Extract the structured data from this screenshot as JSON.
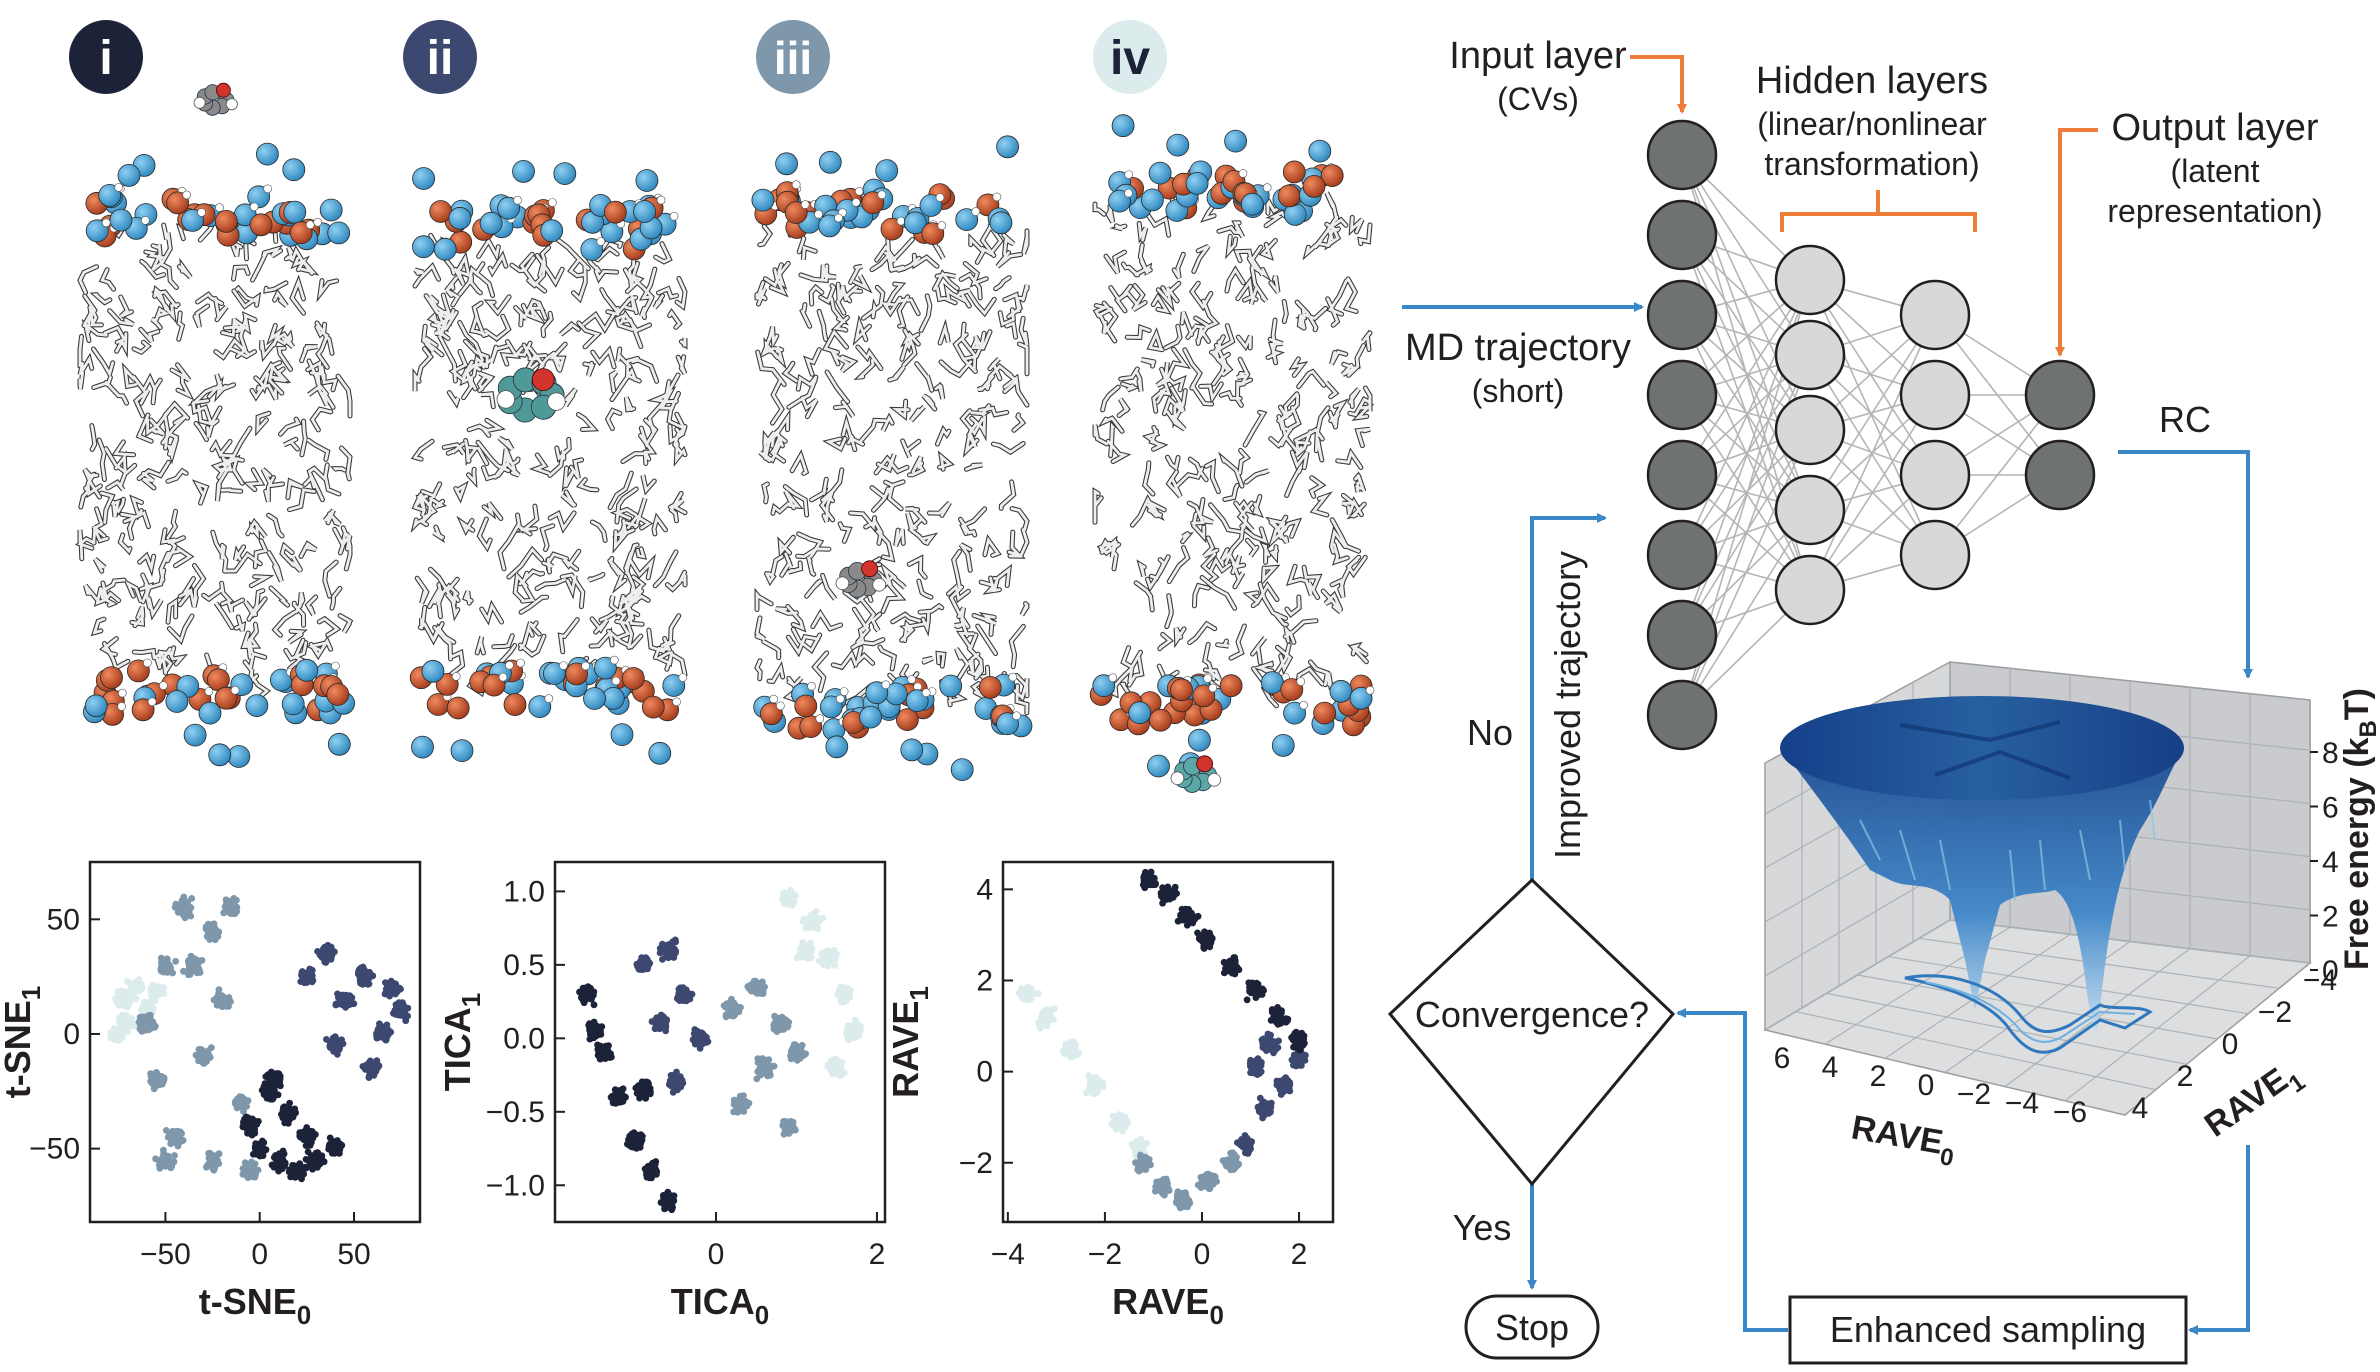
{
  "panels": {
    "labels": [
      "i",
      "ii",
      "iii",
      "iv"
    ],
    "label_colors": [
      "#1c2238",
      "#3d4870",
      "#7f97aa",
      "#dcecec"
    ],
    "label_text_colors": [
      "#ffffff",
      "#ffffff",
      "#ffffff",
      "#1c2238"
    ]
  },
  "network": {
    "input_label": "Input layer",
    "input_sub": "(CVs)",
    "hidden_label": "Hidden layers",
    "hidden_sub1": "(linear/nonlinear",
    "hidden_sub2": "transformation)",
    "output_label": "Output layer",
    "output_sub1": "(latent",
    "output_sub2": "representation)",
    "md_label": "MD trajectory",
    "md_sub": "(short)",
    "rc_label": "RC"
  },
  "flow": {
    "convergence": "Convergence?",
    "no": "No",
    "yes": "Yes",
    "stop": "Stop",
    "improved": "Improved trajectory",
    "enhanced": "Enhanced sampling"
  },
  "surface": {
    "zlabel": "Free energy (k",
    "zlabel_sub": "B",
    "zlabel_end": "T)",
    "zticks": [
      "8",
      "6",
      "4",
      "2",
      "0"
    ],
    "xlabel": "RAVE",
    "xlabel_sub": "0",
    "xticks": [
      "6",
      "4",
      "2",
      "0",
      "−2",
      "−4",
      "−6"
    ],
    "ylabel": "RAVE",
    "ylabel_sub": "1",
    "yticks": [
      "−4",
      "−2",
      "0",
      "2",
      "4"
    ]
  },
  "colors": {
    "arrow_blue": "#3a87c8",
    "arrow_orange": "#ee7d3a",
    "cluster_1": "#1c2238",
    "cluster_2": "#3d4870",
    "cluster_3": "#7f97aa",
    "cluster_4": "#dcecec"
  },
  "chart_data": [
    {
      "type": "scatter",
      "xlabel": "t-SNE",
      "xlabel_sub": "0",
      "ylabel": "t-SNE",
      "ylabel_sub": "1",
      "xlim": [
        -90,
        85
      ],
      "ylim": [
        -82,
        75
      ],
      "xticks": [
        -50,
        0,
        50
      ],
      "xtick_labels": [
        "−50",
        "0",
        "50"
      ],
      "yticks": [
        50,
        0,
        -50
      ],
      "ytick_labels": [
        "50",
        "0",
        "−50"
      ],
      "series": [
        {
          "color": "#dcecec",
          "points": [
            [
              -72,
              15
            ],
            [
              -70,
              5
            ],
            [
              -66,
              20
            ],
            [
              -60,
              10
            ],
            [
              -75,
              0
            ],
            [
              -55,
              18
            ]
          ]
        },
        {
          "color": "#7f97aa",
          "points": [
            [
              -40,
              55
            ],
            [
              -25,
              45
            ],
            [
              -50,
              30
            ],
            [
              -20,
              15
            ],
            [
              -55,
              -20
            ],
            [
              -45,
              -45
            ],
            [
              -25,
              -55
            ],
            [
              -60,
              5
            ],
            [
              -30,
              -10
            ],
            [
              -10,
              -30
            ],
            [
              -35,
              30
            ],
            [
              -15,
              55
            ],
            [
              -50,
              -55
            ],
            [
              -5,
              -60
            ]
          ]
        },
        {
          "color": "#3d4870",
          "points": [
            [
              35,
              35
            ],
            [
              45,
              15
            ],
            [
              25,
              25
            ],
            [
              70,
              20
            ],
            [
              65,
              0
            ],
            [
              75,
              10
            ],
            [
              40,
              -5
            ],
            [
              55,
              25
            ],
            [
              60,
              -15
            ]
          ]
        },
        {
          "color": "#1c2238",
          "points": [
            [
              5,
              -25
            ],
            [
              15,
              -35
            ],
            [
              0,
              -50
            ],
            [
              10,
              -55
            ],
            [
              25,
              -45
            ],
            [
              30,
              -55
            ],
            [
              40,
              -50
            ],
            [
              -5,
              -40
            ],
            [
              20,
              -60
            ],
            [
              8,
              -20
            ]
          ]
        }
      ]
    },
    {
      "type": "scatter",
      "xlabel": "TICA",
      "xlabel_sub": "0",
      "ylabel": "TICA",
      "ylabel_sub": "1",
      "xlim": [
        -2.0,
        2.1
      ],
      "ylim": [
        -1.25,
        1.2
      ],
      "xticks": [
        0,
        2
      ],
      "xtick_labels": [
        "0",
        "2"
      ],
      "yticks": [
        1.0,
        0.5,
        0.0,
        -0.5,
        -1.0
      ],
      "ytick_labels": [
        "1.0",
        "0.5",
        "0.0",
        "−0.5",
        "−1.0"
      ],
      "series": [
        {
          "color": "#1c2238",
          "points": [
            [
              -1.6,
              0.3
            ],
            [
              -1.4,
              -0.1
            ],
            [
              -1.2,
              -0.4
            ],
            [
              -1.0,
              -0.7
            ],
            [
              -0.8,
              -0.9
            ],
            [
              -0.6,
              -1.1
            ],
            [
              -1.5,
              0.05
            ],
            [
              -0.9,
              -0.35
            ]
          ]
        },
        {
          "color": "#3d4870",
          "points": [
            [
              -0.9,
              0.5
            ],
            [
              -0.6,
              0.6
            ],
            [
              -0.4,
              0.3
            ],
            [
              -0.2,
              0.0
            ],
            [
              -0.5,
              -0.3
            ],
            [
              -0.7,
              0.1
            ]
          ]
        },
        {
          "color": "#7f97aa",
          "points": [
            [
              0.2,
              0.2
            ],
            [
              0.5,
              0.35
            ],
            [
              0.8,
              0.1
            ],
            [
              0.6,
              -0.2
            ],
            [
              0.3,
              -0.45
            ],
            [
              1.0,
              -0.1
            ],
            [
              0.9,
              -0.6
            ]
          ]
        },
        {
          "color": "#dcecec",
          "points": [
            [
              0.9,
              0.95
            ],
            [
              1.2,
              0.8
            ],
            [
              1.4,
              0.55
            ],
            [
              1.6,
              0.3
            ],
            [
              1.7,
              0.05
            ],
            [
              1.5,
              -0.2
            ],
            [
              1.1,
              0.6
            ]
          ]
        }
      ]
    },
    {
      "type": "scatter",
      "xlabel": "RAVE",
      "xlabel_sub": "0",
      "ylabel": "RAVE",
      "ylabel_sub": "1",
      "xlim": [
        -4.1,
        2.7
      ],
      "ylim": [
        -3.3,
        4.6
      ],
      "xticks": [
        -4,
        -2,
        0,
        2
      ],
      "xtick_labels": [
        "−4",
        "−2",
        "0",
        "2"
      ],
      "yticks": [
        4,
        2,
        0,
        -2
      ],
      "ytick_labels": [
        "4",
        "2",
        "0",
        "−2"
      ],
      "series": [
        {
          "color": "#dcecec",
          "points": [
            [
              -3.6,
              1.7
            ],
            [
              -3.2,
              1.2
            ],
            [
              -2.7,
              0.5
            ],
            [
              -2.2,
              -0.3
            ],
            [
              -1.7,
              -1.1
            ],
            [
              -1.3,
              -1.7
            ]
          ]
        },
        {
          "color": "#7f97aa",
          "points": [
            [
              -1.2,
              -2.0
            ],
            [
              -0.8,
              -2.5
            ],
            [
              -0.4,
              -2.8
            ],
            [
              0.1,
              -2.4
            ],
            [
              0.6,
              -2.0
            ]
          ]
        },
        {
          "color": "#3d4870",
          "points": [
            [
              0.9,
              -1.6
            ],
            [
              1.3,
              -0.8
            ],
            [
              1.7,
              -0.3
            ],
            [
              2.0,
              0.3
            ],
            [
              1.4,
              0.6
            ],
            [
              1.1,
              0.1
            ]
          ]
        },
        {
          "color": "#1c2238",
          "points": [
            [
              -1.1,
              4.2
            ],
            [
              -0.7,
              3.9
            ],
            [
              -0.3,
              3.4
            ],
            [
              0.1,
              2.9
            ],
            [
              0.6,
              2.3
            ],
            [
              1.1,
              1.8
            ],
            [
              1.6,
              1.2
            ],
            [
              2.0,
              0.7
            ]
          ]
        }
      ]
    }
  ]
}
